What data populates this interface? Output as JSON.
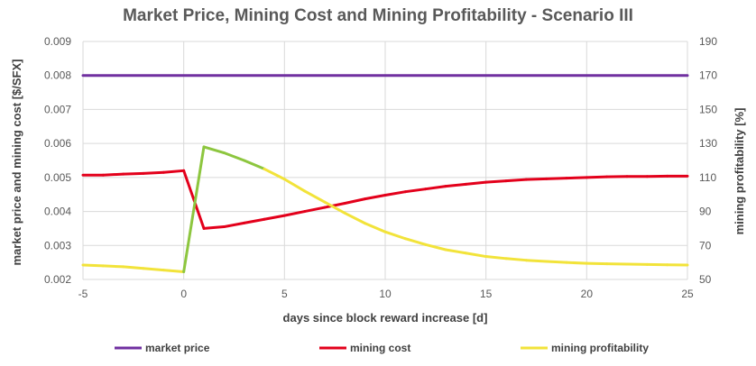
{
  "chart_data": {
    "type": "line",
    "title": "Market Price, Mining Cost and Mining Profitability - Scenario III",
    "xlabel": "days since block reward increase [d]",
    "ylabel_left": "market price and mining cost [$/SFX]",
    "ylabel_right": "mining profitability [%]",
    "xlim": [
      -5,
      25
    ],
    "ylim_left": [
      0.002,
      0.009
    ],
    "ylim_right": [
      50,
      190
    ],
    "x_ticks": [
      "-5",
      "0",
      "5",
      "10",
      "15",
      "20",
      "25"
    ],
    "y_ticks_left": [
      "0.002",
      "0.003",
      "0.004",
      "0.005",
      "0.006",
      "0.007",
      "0.008",
      "0.009"
    ],
    "y_ticks_right": [
      "50",
      "70",
      "90",
      "110",
      "130",
      "150",
      "170",
      "190"
    ],
    "grid": true,
    "legend_position": "bottom",
    "colors": {
      "market_price": "#7030A0",
      "mining_cost": "#E3001B",
      "mining_profitability": "#F2E33A",
      "mining_profitability_peak": "#8DC63F"
    },
    "series": [
      {
        "name": "market price",
        "axis": "left",
        "x": [
          -5,
          25
        ],
        "values": [
          0.008,
          0.008
        ]
      },
      {
        "name": "mining cost",
        "axis": "left",
        "x": [
          -5,
          -4,
          -3,
          -2,
          -1,
          0,
          1,
          2,
          3,
          4,
          5,
          6,
          7,
          8,
          9,
          10,
          11,
          12,
          13,
          14,
          15,
          16,
          17,
          18,
          19,
          20,
          21,
          22,
          23,
          24,
          25
        ],
        "values": [
          0.00507,
          0.00507,
          0.0051,
          0.00512,
          0.00515,
          0.0052,
          0.0035,
          0.00355,
          0.00366,
          0.00377,
          0.00388,
          0.004,
          0.00412,
          0.00424,
          0.00437,
          0.00448,
          0.00458,
          0.00466,
          0.00474,
          0.0048,
          0.00486,
          0.0049,
          0.00494,
          0.00496,
          0.00498,
          0.005,
          0.00502,
          0.00503,
          0.00503,
          0.00504,
          0.00504
        ]
      },
      {
        "name": "mining profitability",
        "axis": "right",
        "x": [
          -5,
          -4,
          -3,
          -2,
          -1,
          0,
          1,
          2,
          3,
          4,
          5,
          6,
          7,
          8,
          9,
          10,
          11,
          12,
          13,
          14,
          15,
          16,
          17,
          18,
          19,
          20,
          21,
          22,
          23,
          24,
          25
        ],
        "values": [
          58.5,
          58,
          57.5,
          56.5,
          55.5,
          54.5,
          128,
          124.5,
          120,
          115,
          109,
          102,
          95.5,
          89,
          83,
          78,
          74,
          70.5,
          67.5,
          65.5,
          63.5,
          62.3,
          61.3,
          60.6,
          60,
          59.5,
          59.2,
          59,
          58.8,
          58.6,
          58.5
        ]
      }
    ]
  }
}
